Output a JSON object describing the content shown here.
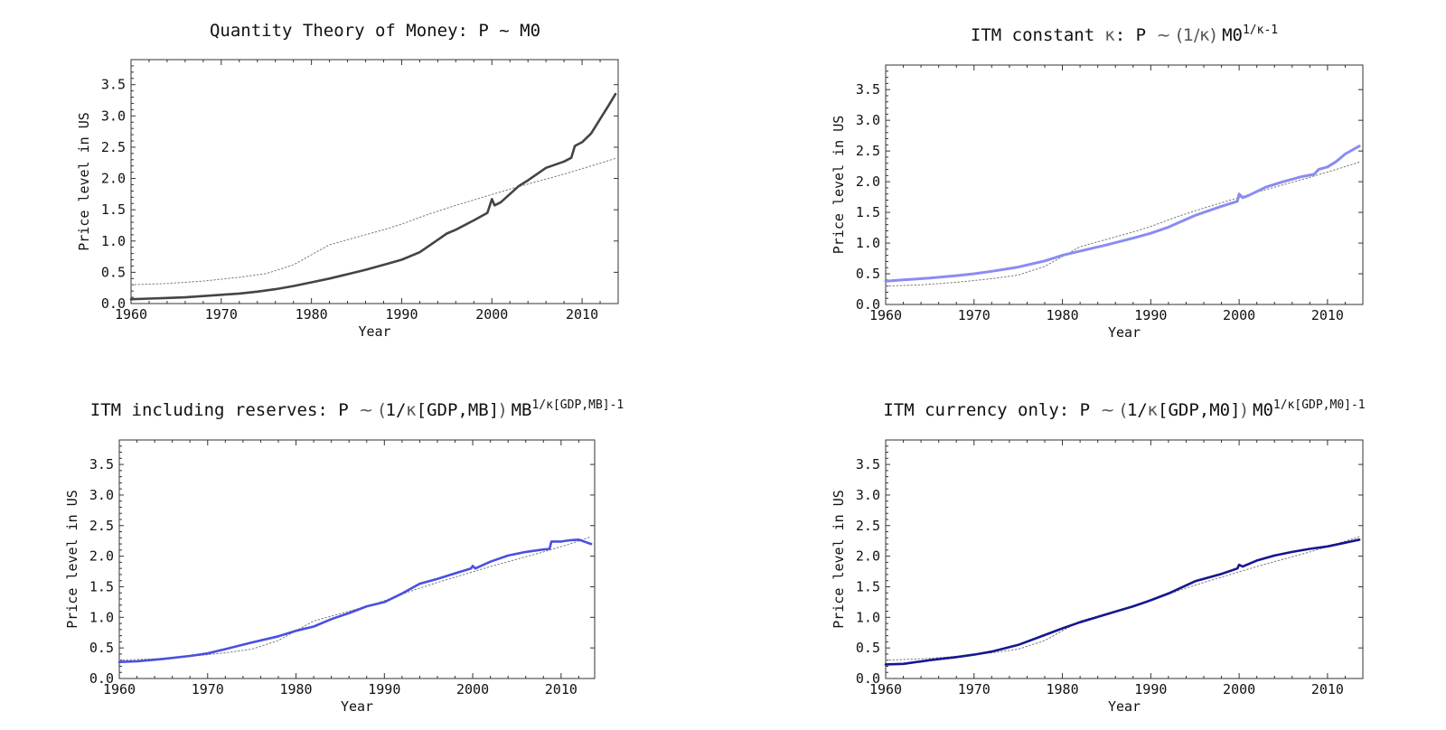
{
  "chart_data": [
    {
      "type": "line",
      "title": "Quantity Theory of Money: P ~ M0",
      "title_parts": [
        {
          "text": "Quantity Theory of Money: P ~ M0",
          "style": "main"
        }
      ],
      "xlabel": "Year",
      "ylabel": "Price level in US",
      "xlim": [
        1960,
        2014
      ],
      "ylim": [
        0,
        3.9
      ],
      "xticks": [
        1960,
        1970,
        1980,
        1990,
        2000,
        2010
      ],
      "yticks": [
        0.0,
        0.5,
        1.0,
        1.5,
        2.0,
        2.5,
        3.0,
        3.5
      ],
      "ytick_labels": [
        "0.0",
        "0.5",
        "1.0",
        "1.5",
        "2.0",
        "2.5",
        "3.0",
        "3.5"
      ],
      "grid": false,
      "series": [
        {
          "color": "#444444",
          "style": "solid",
          "width": 2.6,
          "x": [
            1960,
            1962,
            1964,
            1966,
            1968,
            1970,
            1972,
            1974,
            1976,
            1978,
            1980,
            1982,
            1984,
            1986,
            1988,
            1990,
            1992,
            1994,
            1995,
            1996,
            1998,
            1999.5,
            2000,
            2000.3,
            2001,
            2002,
            2003,
            2004,
            2006,
            2008,
            2008.8,
            2009.2,
            2010,
            2011,
            2012,
            2013,
            2013.7
          ],
          "y": [
            0.07,
            0.08,
            0.09,
            0.1,
            0.12,
            0.14,
            0.16,
            0.19,
            0.23,
            0.28,
            0.34,
            0.4,
            0.47,
            0.54,
            0.62,
            0.7,
            0.82,
            1.02,
            1.12,
            1.18,
            1.33,
            1.45,
            1.67,
            1.57,
            1.62,
            1.75,
            1.88,
            1.97,
            2.17,
            2.27,
            2.33,
            2.52,
            2.58,
            2.72,
            2.95,
            3.18,
            3.35
          ]
        },
        {
          "color": "#777777",
          "style": "dotted",
          "width": 1,
          "x": [
            1960,
            1964,
            1968,
            1972,
            1975,
            1978,
            1980,
            1982,
            1985,
            1988,
            1990,
            1993,
            1996,
            1999,
            2002,
            2005,
            2008,
            2011,
            2013.7
          ],
          "y": [
            0.3,
            0.32,
            0.36,
            0.42,
            0.48,
            0.62,
            0.78,
            0.94,
            1.06,
            1.18,
            1.27,
            1.43,
            1.57,
            1.7,
            1.83,
            1.95,
            2.07,
            2.2,
            2.32
          ]
        }
      ]
    },
    {
      "type": "line",
      "title": "ITM constant κ: P ~ (1/κ) M0^(1/κ-1)",
      "title_parts": [
        {
          "text": "ITM constant ",
          "style": "main"
        },
        {
          "text": "κ",
          "style": "light"
        },
        {
          "text": ": P ",
          "style": "main"
        },
        {
          "text": "~ (1/κ) ",
          "style": "light"
        },
        {
          "text": "M0",
          "style": "main"
        },
        {
          "text": "1/κ-1",
          "style": "sup"
        }
      ],
      "xlabel": "Year",
      "ylabel": "Price level in US",
      "xlim": [
        1960,
        2014
      ],
      "ylim": [
        0,
        3.9
      ],
      "xticks": [
        1960,
        1970,
        1980,
        1990,
        2000,
        2010
      ],
      "yticks": [
        0.0,
        0.5,
        1.0,
        1.5,
        2.0,
        2.5,
        3.0,
        3.5
      ],
      "ytick_labels": [
        "0.0",
        "0.5",
        "1.0",
        "1.5",
        "2.0",
        "2.5",
        "3.0",
        "3.5"
      ],
      "grid": false,
      "series": [
        {
          "color": "#8a8cf2",
          "style": "solid",
          "width": 3,
          "x": [
            1960,
            1962,
            1965,
            1968,
            1970,
            1972,
            1975,
            1978,
            1980,
            1982,
            1985,
            1988,
            1990,
            1992,
            1995,
            1998,
            1999.8,
            2000,
            2000.4,
            2001,
            2003,
            2005,
            2007,
            2008.5,
            2009,
            2010,
            2011,
            2012,
            2013.6
          ],
          "y": [
            0.38,
            0.4,
            0.43,
            0.47,
            0.5,
            0.54,
            0.61,
            0.71,
            0.8,
            0.87,
            0.97,
            1.08,
            1.16,
            1.26,
            1.45,
            1.6,
            1.68,
            1.8,
            1.74,
            1.77,
            1.91,
            2.0,
            2.08,
            2.12,
            2.2,
            2.24,
            2.33,
            2.45,
            2.58
          ]
        },
        {
          "color": "#777777",
          "style": "dotted",
          "width": 1,
          "x": [
            1960,
            1964,
            1968,
            1972,
            1975,
            1978,
            1980,
            1982,
            1985,
            1988,
            1990,
            1993,
            1996,
            1999,
            2002,
            2005,
            2008,
            2011,
            2013.6
          ],
          "y": [
            0.3,
            0.32,
            0.36,
            0.42,
            0.48,
            0.62,
            0.78,
            0.94,
            1.06,
            1.18,
            1.27,
            1.43,
            1.57,
            1.7,
            1.83,
            1.95,
            2.07,
            2.2,
            2.32
          ]
        }
      ]
    },
    {
      "type": "line",
      "title": "ITM including reserves: P ~ (1/κ[GDP,MB]) MB^(1/κ[GDP,MB]-1)",
      "title_parts": [
        {
          "text": "ITM including reserves: P ",
          "style": "main"
        },
        {
          "text": "~ (",
          "style": "light"
        },
        {
          "text": "1/",
          "style": "main"
        },
        {
          "text": "κ",
          "style": "light"
        },
        {
          "text": "[GDP,MB]",
          "style": "main"
        },
        {
          "text": ") ",
          "style": "light"
        },
        {
          "text": "MB",
          "style": "main"
        },
        {
          "text": "1/κ[GDP,MB]-1",
          "style": "sup"
        }
      ],
      "xlabel": "Year",
      "ylabel": "Price level in US",
      "xlim": [
        1960,
        2013.8
      ],
      "ylim": [
        0,
        3.9
      ],
      "xticks": [
        1960,
        1970,
        1980,
        1990,
        2000,
        2010
      ],
      "yticks": [
        0.0,
        0.5,
        1.0,
        1.5,
        2.0,
        2.5,
        3.0,
        3.5
      ],
      "ytick_labels": [
        "0.0",
        "0.5",
        "1.0",
        "1.5",
        "2.0",
        "2.5",
        "3.0",
        "3.5"
      ],
      "grid": false,
      "series": [
        {
          "color": "#4a4fe0",
          "style": "solid",
          "width": 2.6,
          "x": [
            1960,
            1962,
            1965,
            1968,
            1970,
            1972,
            1975,
            1978,
            1980,
            1982,
            1984,
            1986,
            1988,
            1990,
            1992,
            1994,
            1996,
            1998,
            1999.8,
            2000,
            2000.3,
            2002,
            2004,
            2006,
            2008,
            2008.7,
            2008.9,
            2010,
            2011,
            2012,
            2013.4
          ],
          "y": [
            0.27,
            0.28,
            0.32,
            0.37,
            0.41,
            0.48,
            0.59,
            0.69,
            0.78,
            0.85,
            0.97,
            1.07,
            1.18,
            1.25,
            1.39,
            1.55,
            1.63,
            1.72,
            1.8,
            1.84,
            1.8,
            1.91,
            2.01,
            2.07,
            2.11,
            2.12,
            2.24,
            2.24,
            2.26,
            2.27,
            2.2
          ]
        },
        {
          "color": "#777777",
          "style": "dotted",
          "width": 1,
          "x": [
            1960,
            1964,
            1968,
            1972,
            1975,
            1978,
            1980,
            1982,
            1985,
            1988,
            1990,
            1993,
            1996,
            1999,
            2002,
            2005,
            2008,
            2011,
            2013.4
          ],
          "y": [
            0.3,
            0.32,
            0.36,
            0.42,
            0.48,
            0.62,
            0.78,
            0.94,
            1.06,
            1.18,
            1.27,
            1.43,
            1.57,
            1.7,
            1.83,
            1.95,
            2.07,
            2.2,
            2.32
          ]
        }
      ]
    },
    {
      "type": "line",
      "title": "ITM currency only: P ~ (1/κ[GDP,M0]) M0^(1/κ[GDP,M0]-1)",
      "title_parts": [
        {
          "text": "ITM currency only: P ",
          "style": "main"
        },
        {
          "text": "~ (",
          "style": "light"
        },
        {
          "text": "1/",
          "style": "main"
        },
        {
          "text": "κ",
          "style": "light"
        },
        {
          "text": "[GDP,M0]",
          "style": "main"
        },
        {
          "text": ") ",
          "style": "light"
        },
        {
          "text": "M0",
          "style": "main"
        },
        {
          "text": "1/κ[GDP,M0]-1",
          "style": "sup"
        }
      ],
      "xlabel": "Year",
      "ylabel": "Price level in US",
      "xlim": [
        1960,
        2014
      ],
      "ylim": [
        0,
        3.9
      ],
      "xticks": [
        1960,
        1970,
        1980,
        1990,
        2000,
        2010
      ],
      "yticks": [
        0.0,
        0.5,
        1.0,
        1.5,
        2.0,
        2.5,
        3.0,
        3.5
      ],
      "ytick_labels": [
        "0.0",
        "0.5",
        "1.0",
        "1.5",
        "2.0",
        "2.5",
        "3.0",
        "3.5"
      ],
      "grid": false,
      "series": [
        {
          "color": "#15178f",
          "style": "solid",
          "width": 2.6,
          "x": [
            1960,
            1962,
            1965,
            1968,
            1970,
            1972,
            1975,
            1978,
            1980,
            1982,
            1985,
            1988,
            1990,
            1992,
            1995,
            1998,
            1999.8,
            2000,
            2000.4,
            2002,
            2004,
            2006,
            2008,
            2010,
            2012,
            2013.6
          ],
          "y": [
            0.23,
            0.24,
            0.3,
            0.35,
            0.39,
            0.44,
            0.55,
            0.71,
            0.82,
            0.92,
            1.05,
            1.18,
            1.28,
            1.39,
            1.59,
            1.71,
            1.8,
            1.86,
            1.83,
            1.93,
            2.01,
            2.07,
            2.12,
            2.16,
            2.22,
            2.27
          ]
        },
        {
          "color": "#777777",
          "style": "dotted",
          "width": 1,
          "x": [
            1960,
            1964,
            1968,
            1972,
            1975,
            1978,
            1980,
            1982,
            1985,
            1988,
            1990,
            1993,
            1996,
            1999,
            2002,
            2005,
            2008,
            2011,
            2013.6
          ],
          "y": [
            0.3,
            0.32,
            0.36,
            0.42,
            0.48,
            0.62,
            0.78,
            0.94,
            1.06,
            1.18,
            1.27,
            1.43,
            1.57,
            1.7,
            1.83,
            1.95,
            2.07,
            2.2,
            2.32
          ]
        }
      ]
    }
  ]
}
